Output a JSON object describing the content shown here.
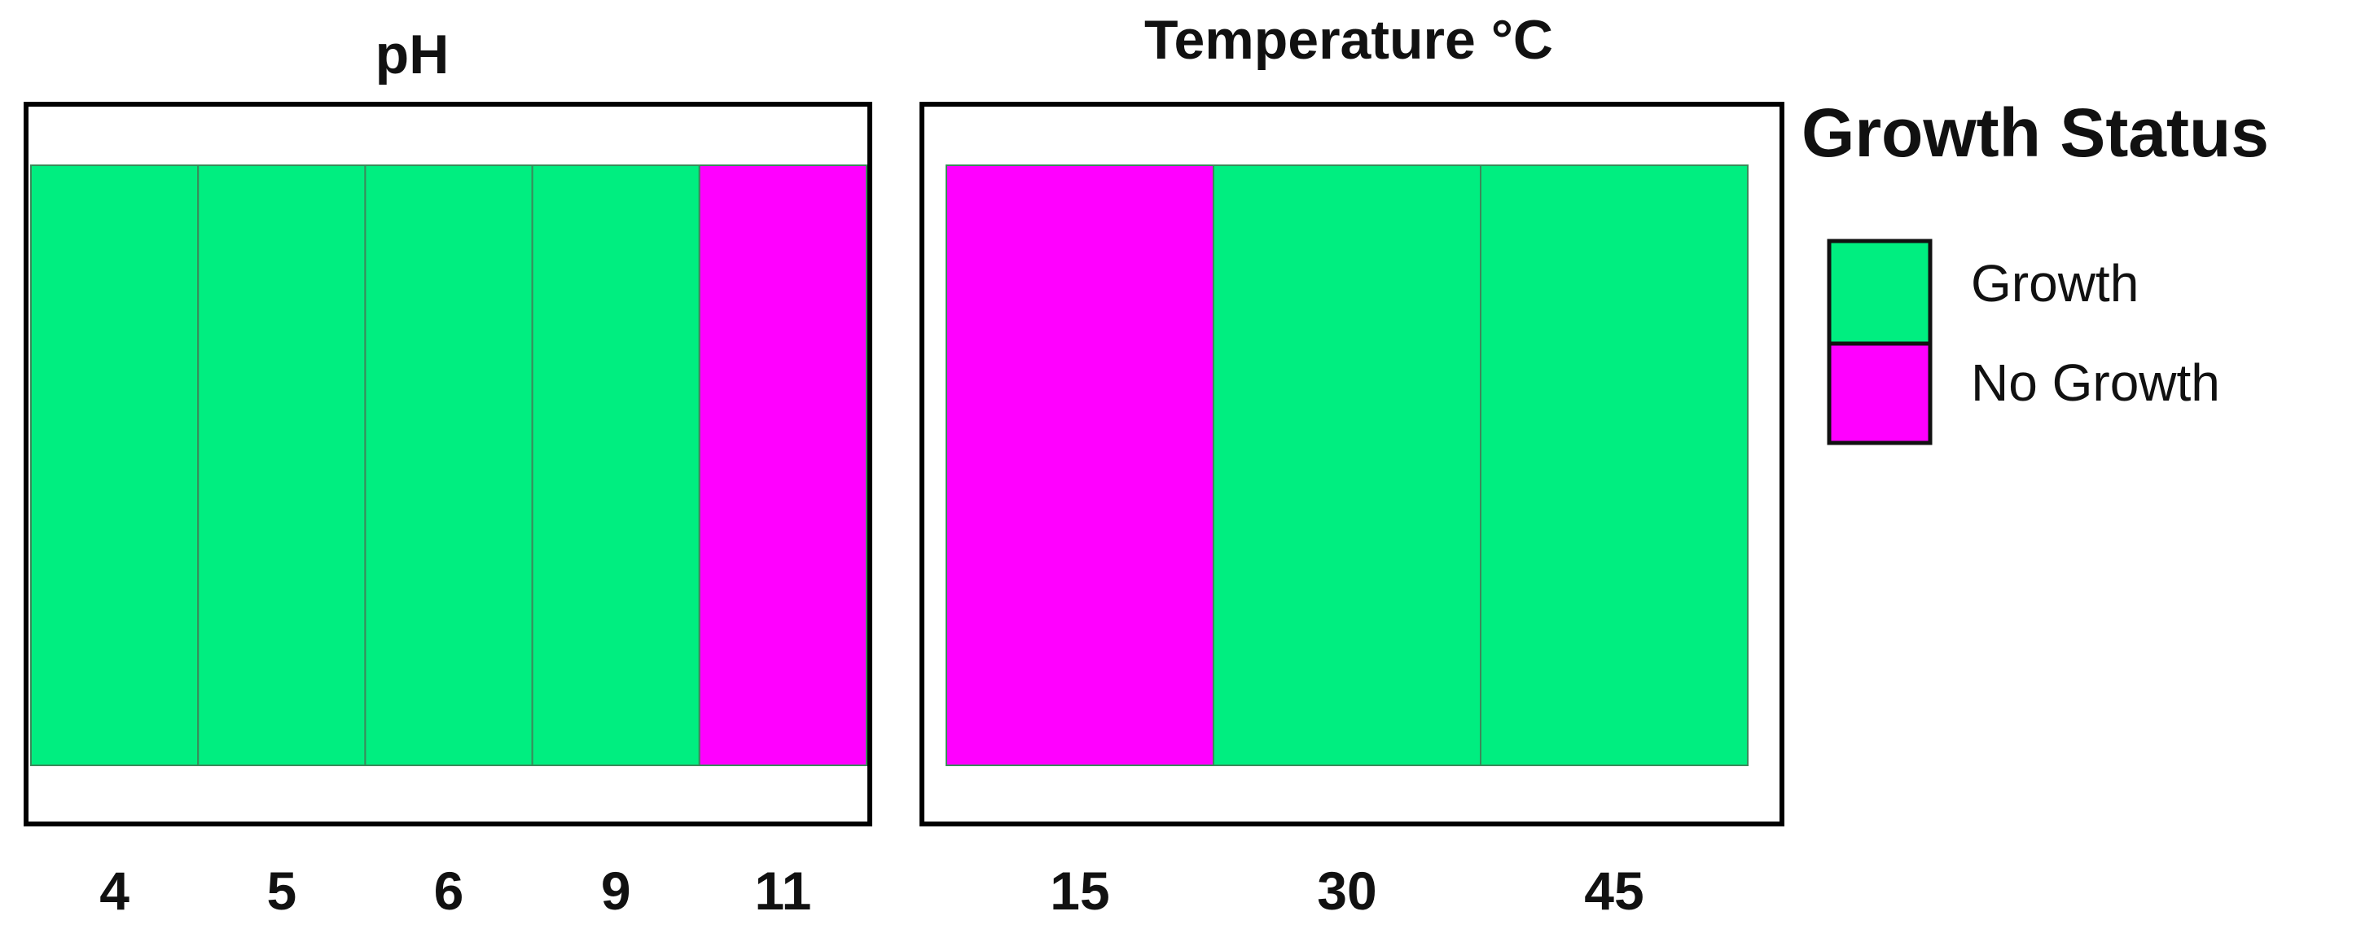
{
  "chart_data": {
    "type": "heatmap",
    "panels": [
      {
        "title": "pH",
        "categories": [
          "4",
          "5",
          "6",
          "9",
          "11"
        ],
        "values": [
          "Growth",
          "Growth",
          "Growth",
          "Growth",
          "No Growth"
        ]
      },
      {
        "title": "Temperature °C",
        "categories": [
          "15",
          "30",
          "45"
        ],
        "values": [
          "No Growth",
          "Growth",
          "Growth"
        ]
      }
    ],
    "legend": {
      "title": "Growth Status",
      "placement": "right",
      "entries": [
        {
          "label": "Growth",
          "color": "#00ee80"
        },
        {
          "label": "No Growth",
          "color": "#ff00ff"
        }
      ]
    }
  }
}
